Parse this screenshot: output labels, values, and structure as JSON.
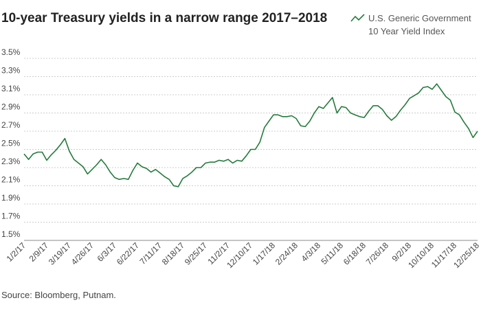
{
  "chart_data": {
    "type": "line",
    "title": "10-year Treasury yields in a narrow range 2017–2018",
    "source": "Source: Bloomberg, Putnam.",
    "categories": [
      "1/2/17",
      null,
      null,
      null,
      null,
      "2/9/17",
      null,
      null,
      null,
      null,
      "3/19/17",
      null,
      null,
      null,
      null,
      "4/26/17",
      null,
      null,
      null,
      null,
      "6/3/17",
      null,
      null,
      null,
      null,
      "6/22/17",
      null,
      null,
      null,
      null,
      "7/11/17",
      null,
      null,
      null,
      null,
      "8/18/17",
      null,
      null,
      null,
      null,
      "9/25/17",
      null,
      null,
      null,
      null,
      "11/2/17",
      null,
      null,
      null,
      null,
      "12/10/17",
      null,
      null,
      null,
      null,
      "1/17/18",
      null,
      null,
      null,
      null,
      "2/24/18",
      null,
      null,
      null,
      null,
      "4/3/18",
      null,
      null,
      null,
      null,
      "5/11/18",
      null,
      null,
      null,
      null,
      "6/18/18",
      null,
      null,
      null,
      null,
      "7/26/18",
      null,
      null,
      null,
      null,
      "9/2/18",
      null,
      null,
      null,
      null,
      "10/10/18",
      null,
      null,
      null,
      null,
      "11/17/18",
      null,
      null,
      null,
      null,
      "12/25/18"
    ],
    "series": [
      {
        "name": "U.S. Generic Government 10 Year Yield Index",
        "color": "#237a3b",
        "values": [
          2.45,
          2.39,
          2.45,
          2.47,
          2.47,
          2.38,
          2.44,
          2.49,
          2.55,
          2.62,
          2.48,
          2.39,
          2.35,
          2.31,
          2.23,
          2.28,
          2.33,
          2.39,
          2.33,
          2.25,
          2.19,
          2.17,
          2.18,
          2.17,
          2.27,
          2.35,
          2.31,
          2.29,
          2.25,
          2.28,
          2.24,
          2.2,
          2.17,
          2.1,
          2.09,
          2.18,
          2.21,
          2.25,
          2.3,
          2.3,
          2.35,
          2.36,
          2.36,
          2.38,
          2.37,
          2.39,
          2.35,
          2.38,
          2.37,
          2.43,
          2.5,
          2.5,
          2.58,
          2.74,
          2.81,
          2.88,
          2.88,
          2.86,
          2.86,
          2.87,
          2.84,
          2.76,
          2.75,
          2.81,
          2.9,
          2.97,
          2.95,
          3.01,
          3.07,
          2.9,
          2.97,
          2.96,
          2.9,
          2.88,
          2.86,
          2.85,
          2.92,
          2.98,
          2.98,
          2.94,
          2.87,
          2.82,
          2.86,
          2.93,
          2.99,
          3.06,
          3.09,
          3.12,
          3.18,
          3.19,
          3.16,
          3.22,
          3.15,
          3.08,
          3.04,
          2.91,
          2.88,
          2.8,
          2.73,
          2.63,
          2.7
        ]
      }
    ],
    "ylim": [
      1.5,
      3.5
    ],
    "yticks": [
      {
        "value": 1.5,
        "label": "1.5%"
      },
      {
        "value": 1.7,
        "label": "1.7%"
      },
      {
        "value": 1.9,
        "label": "1.9%"
      },
      {
        "value": 2.1,
        "label": "2.1%"
      },
      {
        "value": 2.3,
        "label": "2.3%"
      },
      {
        "value": 2.5,
        "label": "2.5%"
      },
      {
        "value": 2.7,
        "label": "2.7%"
      },
      {
        "value": 2.9,
        "label": "2.9%"
      },
      {
        "value": 3.1,
        "label": "3.1%"
      },
      {
        "value": 3.3,
        "label": "3.3%"
      },
      {
        "value": 3.5,
        "label": "3.5%"
      }
    ],
    "grid": true,
    "legend": "top-right"
  }
}
